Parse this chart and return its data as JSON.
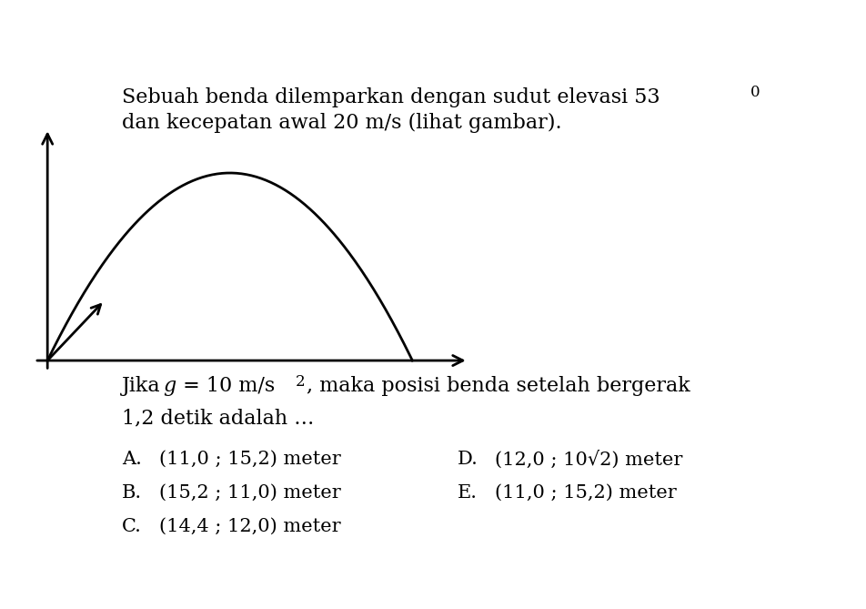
{
  "title_line1": "Sebuah benda dilemparkan dengan sudut elevasi 53",
  "title_degree": "0",
  "title_line2": "dan kecepatan awal 20 m/s (lihat gambar).",
  "question_line1": "Jika ",
  "question_g": "g",
  "question_line1b": " = 10 m/s",
  "question_sup": "2",
  "question_line1c": ", maka posisi benda setelah bergerak",
  "question_line2": "1,2 detik adalah …",
  "options": [
    {
      "label": "A.",
      "text": "(11,0 ; 15,2) meter",
      "col": 0
    },
    {
      "label": "B.",
      "text": "(15,2 ; 11,0) meter",
      "col": 0
    },
    {
      "label": "C.",
      "text": "(14,4 ; 12,0) meter",
      "col": 0
    },
    {
      "label": "D.",
      "text": "(12,0 ; 10√2) meter",
      "col": 1
    },
    {
      "label": "E.",
      "text": "(11,0 ; 15,2) meter",
      "col": 1
    }
  ],
  "background_color": "#ffffff",
  "text_color": "#000000",
  "font_size_main": 16,
  "font_size_options": 15,
  "trajectory_color": "#000000",
  "axis_color": "#000000",
  "arrow_color": "#000000"
}
